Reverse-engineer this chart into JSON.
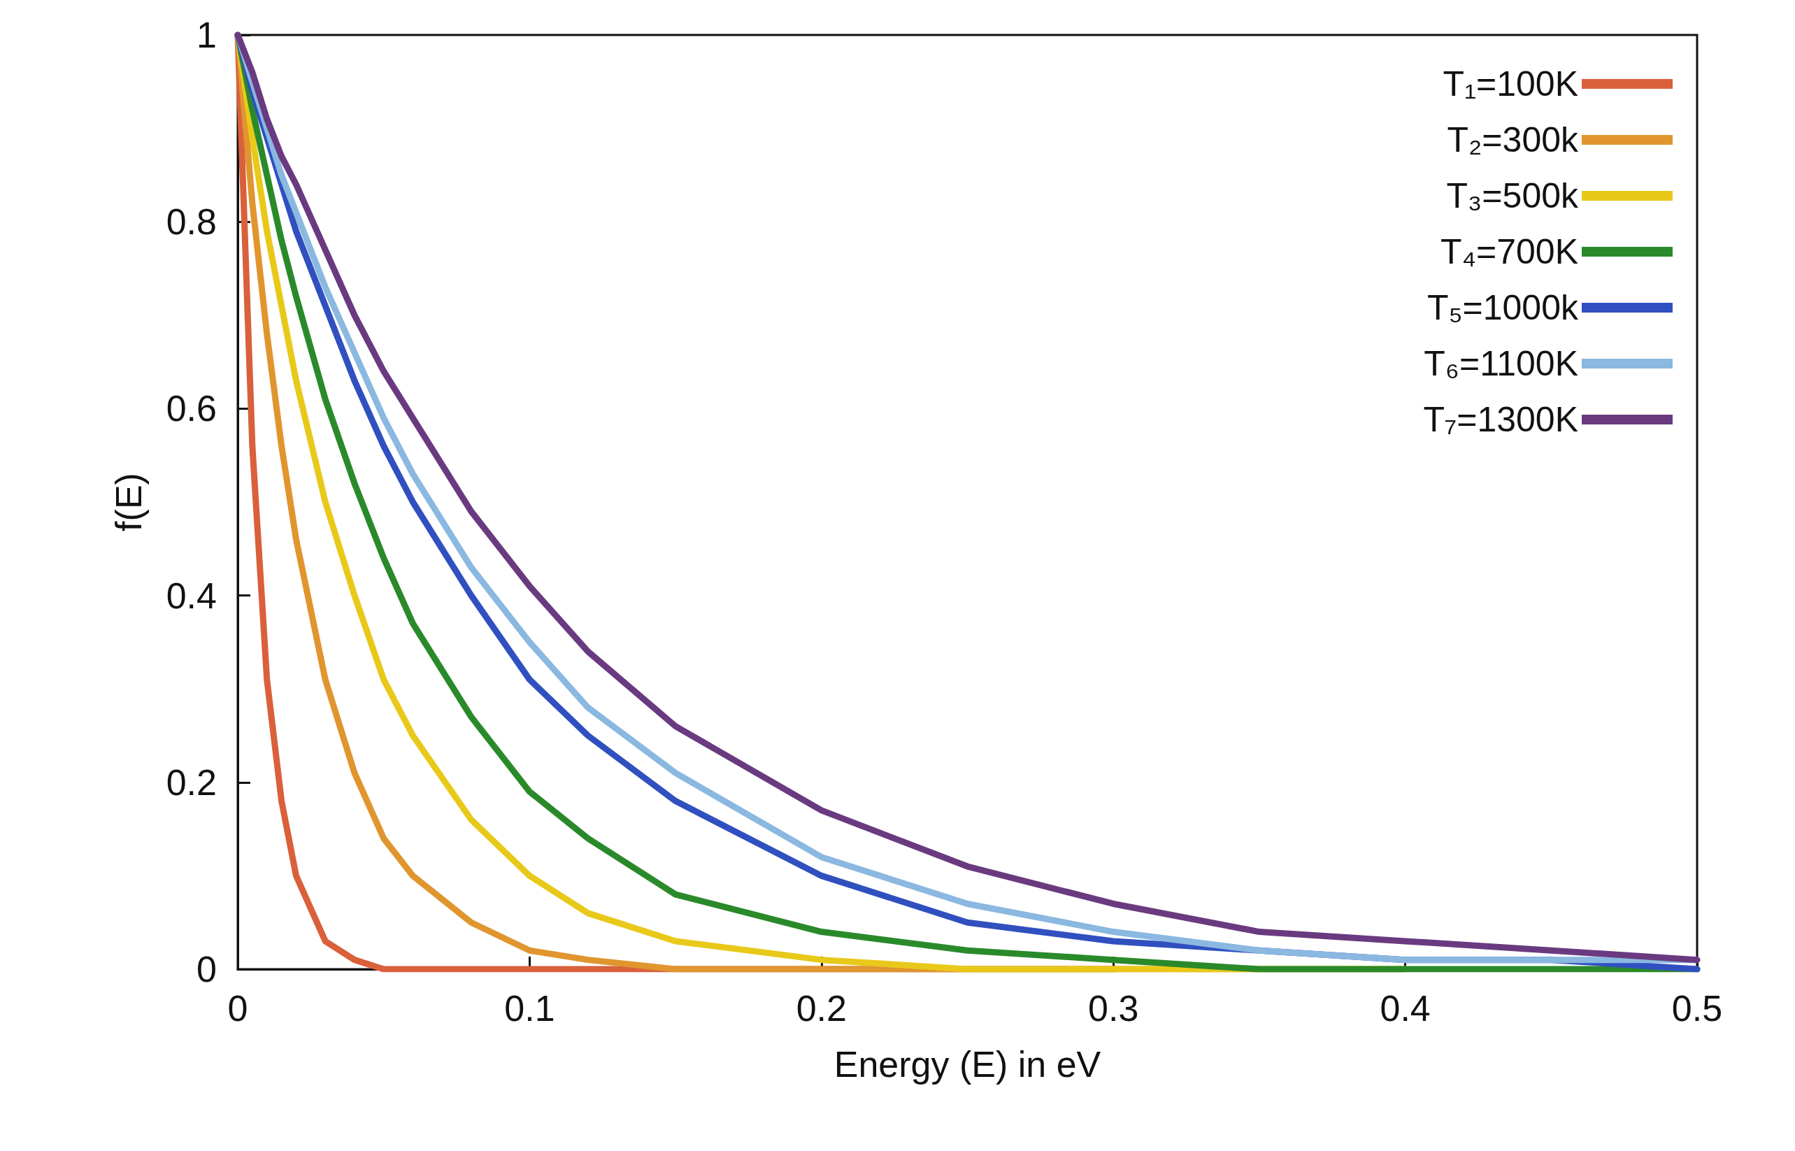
{
  "chart_data": {
    "type": "line",
    "xlabel": "Energy (E) in eV",
    "ylabel": "f(E)",
    "x": [
      0,
      0.005,
      0.01,
      0.015,
      0.02,
      0.03,
      0.04,
      0.05,
      0.06,
      0.08,
      0.1,
      0.12,
      0.15,
      0.2,
      0.25,
      0.3,
      0.35,
      0.4,
      0.45,
      0.5
    ],
    "xlim": [
      0,
      0.5
    ],
    "xticks": [
      0,
      0.1,
      0.2,
      0.3,
      0.4,
      0.5
    ],
    "ylim": [
      0,
      1
    ],
    "yticks": [
      0,
      0.2,
      0.4,
      0.6,
      0.8,
      1
    ],
    "grid": false,
    "legend": "top right",
    "marker": "none",
    "line_style": "solid",
    "series": [
      {
        "name": "T₁=100K",
        "color": "#d9603b",
        "values": [
          1,
          0.56,
          0.31,
          0.18,
          0.1,
          0.03,
          0.01,
          0,
          0,
          0,
          0,
          0,
          0,
          0,
          0,
          0,
          null,
          null,
          null,
          null
        ]
      },
      {
        "name": "T₂=300k",
        "color": "#e0952e",
        "values": [
          1,
          0.82,
          0.68,
          0.56,
          0.46,
          0.31,
          0.21,
          0.14,
          0.1,
          0.05,
          0.02,
          0.01,
          0,
          0,
          0,
          0,
          0,
          0,
          null,
          null
        ]
      },
      {
        "name": "T₃=500k",
        "color": "#e8c91a",
        "values": [
          1,
          0.89,
          0.79,
          0.71,
          0.63,
          0.5,
          0.4,
          0.31,
          0.25,
          0.16,
          0.1,
          0.06,
          0.03,
          0.01,
          0,
          0,
          0,
          0,
          null,
          null
        ]
      },
      {
        "name": "T₄=700K",
        "color": "#2a8a2a",
        "values": [
          1,
          0.92,
          0.85,
          0.78,
          0.72,
          0.61,
          0.52,
          0.44,
          0.37,
          0.27,
          0.19,
          0.14,
          0.08,
          0.04,
          0.02,
          0.01,
          0,
          0,
          0,
          0
        ]
      },
      {
        "name": "T₅=1000k",
        "color": "#3050c0",
        "values": [
          1,
          0.94,
          0.89,
          0.84,
          0.79,
          0.71,
          0.63,
          0.56,
          0.5,
          0.4,
          0.31,
          0.25,
          0.18,
          0.1,
          0.05,
          0.03,
          0.02,
          0.01,
          0.01,
          0
        ]
      },
      {
        "name": "T₆=1100K",
        "color": "#8ab8e0",
        "values": [
          1,
          0.95,
          0.9,
          0.85,
          0.81,
          0.73,
          0.66,
          0.59,
          0.53,
          0.43,
          0.35,
          0.28,
          0.21,
          0.12,
          0.07,
          0.04,
          0.02,
          0.01,
          0.01,
          0.01
        ]
      },
      {
        "name": "T₇=1300K",
        "color": "#6a3a80",
        "values": [
          1,
          0.96,
          0.91,
          0.87,
          0.84,
          0.77,
          0.7,
          0.64,
          0.59,
          0.49,
          0.41,
          0.34,
          0.26,
          0.17,
          0.11,
          0.07,
          0.04,
          0.03,
          0.02,
          0.01
        ]
      }
    ]
  }
}
